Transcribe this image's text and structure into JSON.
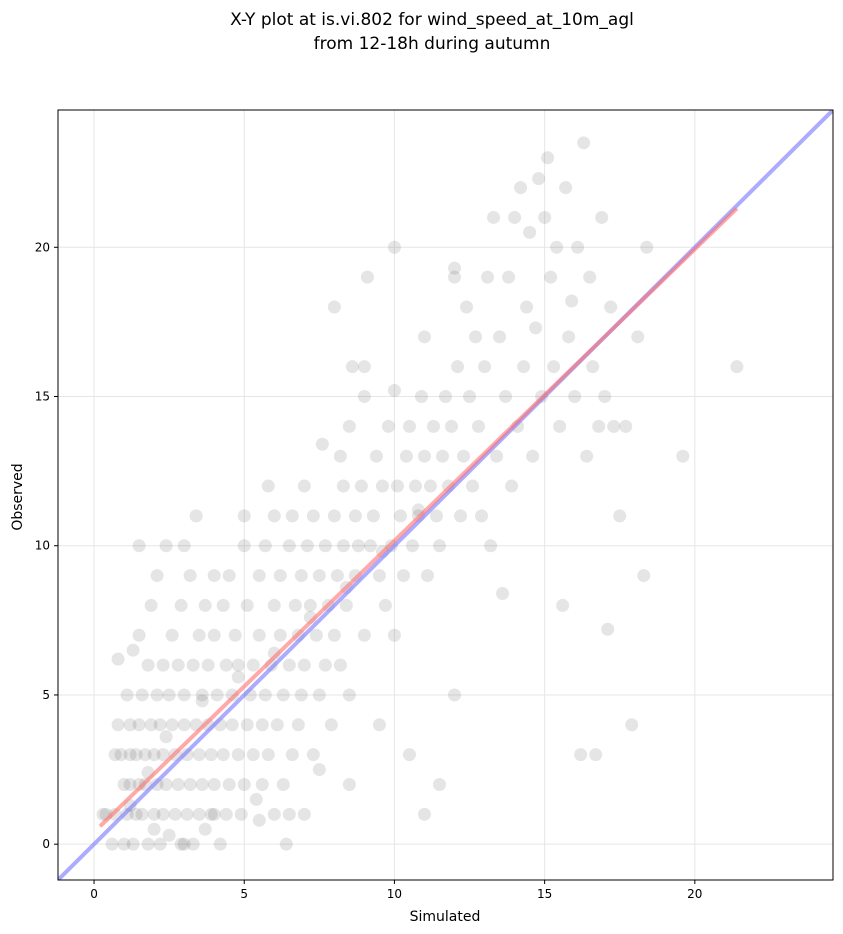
{
  "chart_data": {
    "type": "scatter",
    "title": "X-Y plot at is.vi.802 for wind_speed_at_10m_agl",
    "subtitle": "from 12-18h during autumn",
    "xlabel": "Simulated",
    "ylabel": "Observed",
    "xlim": [
      -1.2,
      24.6
    ],
    "ylim": [
      -1.2,
      24.6
    ],
    "xticks": [
      0,
      5,
      10,
      15,
      20
    ],
    "yticks": [
      0,
      5,
      10,
      15,
      20
    ],
    "grid": true,
    "colors": {
      "points": "#333333",
      "identity_line": "#7f7fff",
      "fit_line": "#ff7070"
    },
    "identity_line": {
      "x": [
        -1.2,
        24.6
      ],
      "y": [
        -1.2,
        24.6
      ]
    },
    "fit_line": {
      "x": [
        0.2,
        21.4
      ],
      "y": [
        0.6,
        21.3
      ]
    },
    "points": [
      [
        0.3,
        1.0
      ],
      [
        0.4,
        1.0
      ],
      [
        0.6,
        0.0
      ],
      [
        0.7,
        1.0
      ],
      [
        0.7,
        3.0
      ],
      [
        0.8,
        4.0
      ],
      [
        0.8,
        6.2
      ],
      [
        0.9,
        3.0
      ],
      [
        1.0,
        2.0
      ],
      [
        1.0,
        0.0
      ],
      [
        1.1,
        5.0
      ],
      [
        1.1,
        1.0
      ],
      [
        1.2,
        3.0
      ],
      [
        1.2,
        4.0
      ],
      [
        1.2,
        2.0
      ],
      [
        1.3,
        6.5
      ],
      [
        1.3,
        0.0
      ],
      [
        1.4,
        1.0
      ],
      [
        1.4,
        3.0
      ],
      [
        1.5,
        2.0
      ],
      [
        1.5,
        4.0
      ],
      [
        1.5,
        7.0
      ],
      [
        1.5,
        10.0
      ],
      [
        1.6,
        5.0
      ],
      [
        1.6,
        1.0
      ],
      [
        1.7,
        3.0
      ],
      [
        1.7,
        2.0
      ],
      [
        1.8,
        6.0
      ],
      [
        1.8,
        0.0
      ],
      [
        1.9,
        4.0
      ],
      [
        1.9,
        8.0
      ],
      [
        2.0,
        1.0
      ],
      [
        2.0,
        3.0
      ],
      [
        2.1,
        5.0
      ],
      [
        2.1,
        2.0
      ],
      [
        2.1,
        9.0
      ],
      [
        2.2,
        0.0
      ],
      [
        2.2,
        4.0
      ],
      [
        2.3,
        1.0
      ],
      [
        2.3,
        6.0
      ],
      [
        2.3,
        3.0
      ],
      [
        2.4,
        2.0
      ],
      [
        2.4,
        10.0
      ],
      [
        2.5,
        5.0
      ],
      [
        2.5,
        0.3
      ],
      [
        2.6,
        4.0
      ],
      [
        2.6,
        7.0
      ],
      [
        2.7,
        1.0
      ],
      [
        2.7,
        3.0
      ],
      [
        2.8,
        2.0
      ],
      [
        2.8,
        6.0
      ],
      [
        2.9,
        8.0
      ],
      [
        2.9,
        0.0
      ],
      [
        3.0,
        4.0
      ],
      [
        3.0,
        5.0
      ],
      [
        3.1,
        1.0
      ],
      [
        3.1,
        3.0
      ],
      [
        3.2,
        2.0
      ],
      [
        3.2,
        9.0
      ],
      [
        3.3,
        6.0
      ],
      [
        3.3,
        0.0
      ],
      [
        3.4,
        4.0
      ],
      [
        3.4,
        11.0
      ],
      [
        3.5,
        1.0
      ],
      [
        3.5,
        3.0
      ],
      [
        3.5,
        7.0
      ],
      [
        3.6,
        2.0
      ],
      [
        3.6,
        5.0
      ],
      [
        3.7,
        8.0
      ],
      [
        3.7,
        0.5
      ],
      [
        3.8,
        4.0
      ],
      [
        3.8,
        6.0
      ],
      [
        3.9,
        1.0
      ],
      [
        3.9,
        3.0
      ],
      [
        4.0,
        2.0
      ],
      [
        4.0,
        7.0
      ],
      [
        4.1,
        5.0
      ],
      [
        4.2,
        4.0
      ],
      [
        4.2,
        0.0
      ],
      [
        4.3,
        8.0
      ],
      [
        4.3,
        3.0
      ],
      [
        4.4,
        6.0
      ],
      [
        4.4,
        1.0
      ],
      [
        4.5,
        2.0
      ],
      [
        4.5,
        9.0
      ],
      [
        4.6,
        5.0
      ],
      [
        4.6,
        4.0
      ],
      [
        4.7,
        7.0
      ],
      [
        4.8,
        3.0
      ],
      [
        4.8,
        6.0
      ],
      [
        4.9,
        1.0
      ],
      [
        5.0,
        11.0
      ],
      [
        5.0,
        2.0
      ],
      [
        5.1,
        4.0
      ],
      [
        5.1,
        8.0
      ],
      [
        5.2,
        5.0
      ],
      [
        5.3,
        3.0
      ],
      [
        5.3,
        6.0
      ],
      [
        5.4,
        1.5
      ],
      [
        5.5,
        7.0
      ],
      [
        5.5,
        9.0
      ],
      [
        5.6,
        2.0
      ],
      [
        5.6,
        4.0
      ],
      [
        5.7,
        10.0
      ],
      [
        5.7,
        5.0
      ],
      [
        5.8,
        3.0
      ],
      [
        5.8,
        12.0
      ],
      [
        5.9,
        6.0
      ],
      [
        6.0,
        8.0
      ],
      [
        6.0,
        1.0
      ],
      [
        6.1,
        4.0
      ],
      [
        6.2,
        7.0
      ],
      [
        6.2,
        9.0
      ],
      [
        6.3,
        5.0
      ],
      [
        6.3,
        2.0
      ],
      [
        6.4,
        0.0
      ],
      [
        6.5,
        6.0
      ],
      [
        6.5,
        10.0
      ],
      [
        6.6,
        3.0
      ],
      [
        6.6,
        11.0
      ],
      [
        6.7,
        8.0
      ],
      [
        6.8,
        4.0
      ],
      [
        6.8,
        7.0
      ],
      [
        6.9,
        5.0
      ],
      [
        6.9,
        9.0
      ],
      [
        7.0,
        6.0
      ],
      [
        7.0,
        1.0
      ],
      [
        7.1,
        10.0
      ],
      [
        7.2,
        8.0
      ],
      [
        7.3,
        3.0
      ],
      [
        7.3,
        11.0
      ],
      [
        7.4,
        7.0
      ],
      [
        7.5,
        5.0
      ],
      [
        7.5,
        9.0
      ],
      [
        7.6,
        13.4
      ],
      [
        7.7,
        6.0
      ],
      [
        7.7,
        10.0
      ],
      [
        7.8,
        8.0
      ],
      [
        7.9,
        4.0
      ],
      [
        8.0,
        11.0
      ],
      [
        8.0,
        7.0
      ],
      [
        8.1,
        9.0
      ],
      [
        8.2,
        13.0
      ],
      [
        8.2,
        6.0
      ],
      [
        8.3,
        10.0
      ],
      [
        8.3,
        12.0
      ],
      [
        8.4,
        8.0
      ],
      [
        8.5,
        14.0
      ],
      [
        8.5,
        5.0
      ],
      [
        8.6,
        16.0
      ],
      [
        8.7,
        11.0
      ],
      [
        8.7,
        9.0
      ],
      [
        8.8,
        10.0
      ],
      [
        8.9,
        12.0
      ],
      [
        9.0,
        15.0
      ],
      [
        9.0,
        7.0
      ],
      [
        9.1,
        19.0
      ],
      [
        9.2,
        10.0
      ],
      [
        9.3,
        11.0
      ],
      [
        9.4,
        13.0
      ],
      [
        9.5,
        9.0
      ],
      [
        9.6,
        12.0
      ],
      [
        9.7,
        8.0
      ],
      [
        9.8,
        14.0
      ],
      [
        9.9,
        10.0
      ],
      [
        10.0,
        15.2
      ],
      [
        10.0,
        7.0
      ],
      [
        10.1,
        12.0
      ],
      [
        10.2,
        11.0
      ],
      [
        10.3,
        9.0
      ],
      [
        10.4,
        13.0
      ],
      [
        10.5,
        14.0
      ],
      [
        10.6,
        10.0
      ],
      [
        10.7,
        12.0
      ],
      [
        10.8,
        11.0
      ],
      [
        10.9,
        15.0
      ],
      [
        11.0,
        13.0
      ],
      [
        11.1,
        9.0
      ],
      [
        11.2,
        12.0
      ],
      [
        11.3,
        14.0
      ],
      [
        11.4,
        11.0
      ],
      [
        11.5,
        10.0
      ],
      [
        11.6,
        13.0
      ],
      [
        11.7,
        15.0
      ],
      [
        11.8,
        12.0
      ],
      [
        11.9,
        14.0
      ],
      [
        12.0,
        19.0
      ],
      [
        12.1,
        16.0
      ],
      [
        12.2,
        11.0
      ],
      [
        12.3,
        13.0
      ],
      [
        12.4,
        18.0
      ],
      [
        12.5,
        15.0
      ],
      [
        12.6,
        12.0
      ],
      [
        12.7,
        17.0
      ],
      [
        12.8,
        14.0
      ],
      [
        12.9,
        11.0
      ],
      [
        13.0,
        16.0
      ],
      [
        13.1,
        19.0
      ],
      [
        13.2,
        10.0
      ],
      [
        13.3,
        21.0
      ],
      [
        13.4,
        13.0
      ],
      [
        13.5,
        17.0
      ],
      [
        13.6,
        8.4
      ],
      [
        13.7,
        15.0
      ],
      [
        13.8,
        19.0
      ],
      [
        13.9,
        12.0
      ],
      [
        14.0,
        21.0
      ],
      [
        14.1,
        14.0
      ],
      [
        14.2,
        22.0
      ],
      [
        14.3,
        16.0
      ],
      [
        14.4,
        18.0
      ],
      [
        14.5,
        20.5
      ],
      [
        14.6,
        13.0
      ],
      [
        14.7,
        17.3
      ],
      [
        14.8,
        22.3
      ],
      [
        14.9,
        15.0
      ],
      [
        15.0,
        21.0
      ],
      [
        15.1,
        23.0
      ],
      [
        15.2,
        19.0
      ],
      [
        15.3,
        16.0
      ],
      [
        15.4,
        20.0
      ],
      [
        15.5,
        14.0
      ],
      [
        15.6,
        8.0
      ],
      [
        15.7,
        22.0
      ],
      [
        15.8,
        17.0
      ],
      [
        15.9,
        18.2
      ],
      [
        16.0,
        15.0
      ],
      [
        16.1,
        20.0
      ],
      [
        16.2,
        3.0
      ],
      [
        16.3,
        23.5
      ],
      [
        16.4,
        13.0
      ],
      [
        16.5,
        19.0
      ],
      [
        16.6,
        16.0
      ],
      [
        16.7,
        3.0
      ],
      [
        16.8,
        14.0
      ],
      [
        16.9,
        21.0
      ],
      [
        17.0,
        15.0
      ],
      [
        17.1,
        7.2
      ],
      [
        17.2,
        18.0
      ],
      [
        17.3,
        14.0
      ],
      [
        17.5,
        11.0
      ],
      [
        17.7,
        14.0
      ],
      [
        17.9,
        4.0
      ],
      [
        18.1,
        17.0
      ],
      [
        18.3,
        9.0
      ],
      [
        18.4,
        20.0
      ],
      [
        19.6,
        13.0
      ],
      [
        21.4,
        16.0
      ],
      [
        2.0,
        0.5
      ],
      [
        3.0,
        0.0
      ],
      [
        4.0,
        1.0
      ],
      [
        5.5,
        0.8
      ],
      [
        6.5,
        1.0
      ],
      [
        7.5,
        2.5
      ],
      [
        8.5,
        2.0
      ],
      [
        9.5,
        4.0
      ],
      [
        10.5,
        3.0
      ],
      [
        11.0,
        1.0
      ],
      [
        11.5,
        2.0
      ],
      [
        12.0,
        5.0
      ],
      [
        1.2,
        1.3
      ],
      [
        1.8,
        2.4
      ],
      [
        2.4,
        3.6
      ],
      [
        3.6,
        4.8
      ],
      [
        4.8,
        5.6
      ],
      [
        6.0,
        6.4
      ],
      [
        7.2,
        7.6
      ],
      [
        8.4,
        8.6
      ],
      [
        9.6,
        9.8
      ],
      [
        10.8,
        11.2
      ],
      [
        3.0,
        10.0
      ],
      [
        4.0,
        9.0
      ],
      [
        5.0,
        10.0
      ],
      [
        6.0,
        11.0
      ],
      [
        7.0,
        12.0
      ],
      [
        8.0,
        18.0
      ],
      [
        9.0,
        16.0
      ],
      [
        10.0,
        20.0
      ],
      [
        11.0,
        17.0
      ],
      [
        12.0,
        19.3
      ]
    ]
  }
}
